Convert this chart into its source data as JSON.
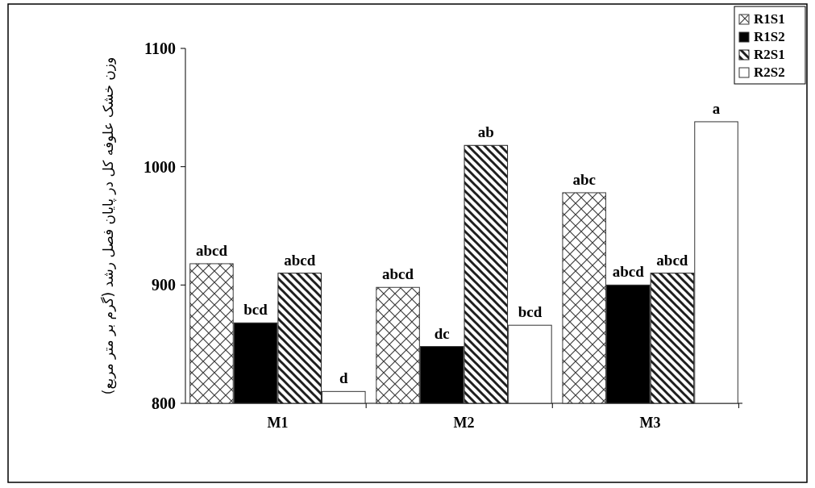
{
  "chart_data": {
    "type": "bar",
    "ylabel": "وزن خشک علوفه کل در پایان فصل رشد (گرم بر متر مربع)",
    "categories": [
      "M1",
      "M2",
      "M3"
    ],
    "ylim": [
      800,
      1100
    ],
    "yticks": [
      800,
      900,
      1000,
      1100
    ],
    "grid": false,
    "legend": "top right",
    "series": [
      {
        "name": "R1S1",
        "color": "#3c3c3c",
        "values": [
          918,
          898,
          978
        ],
        "value_labels": [
          "abcd",
          "abcd",
          "abc"
        ]
      },
      {
        "name": "R1S2",
        "color": "#000000",
        "values": [
          868,
          848,
          900
        ],
        "value_labels": [
          "bcd",
          "dc",
          "abcd"
        ]
      },
      {
        "name": "R2S1",
        "color": "#1e1e1e",
        "values": [
          910,
          1018,
          910
        ],
        "value_labels": [
          "abcd",
          "ab",
          "abcd"
        ]
      },
      {
        "name": "R2S2",
        "color": "#ffffff",
        "values": [
          810,
          866,
          1038
        ],
        "value_labels": [
          "d",
          "bcd",
          "a"
        ]
      }
    ]
  }
}
